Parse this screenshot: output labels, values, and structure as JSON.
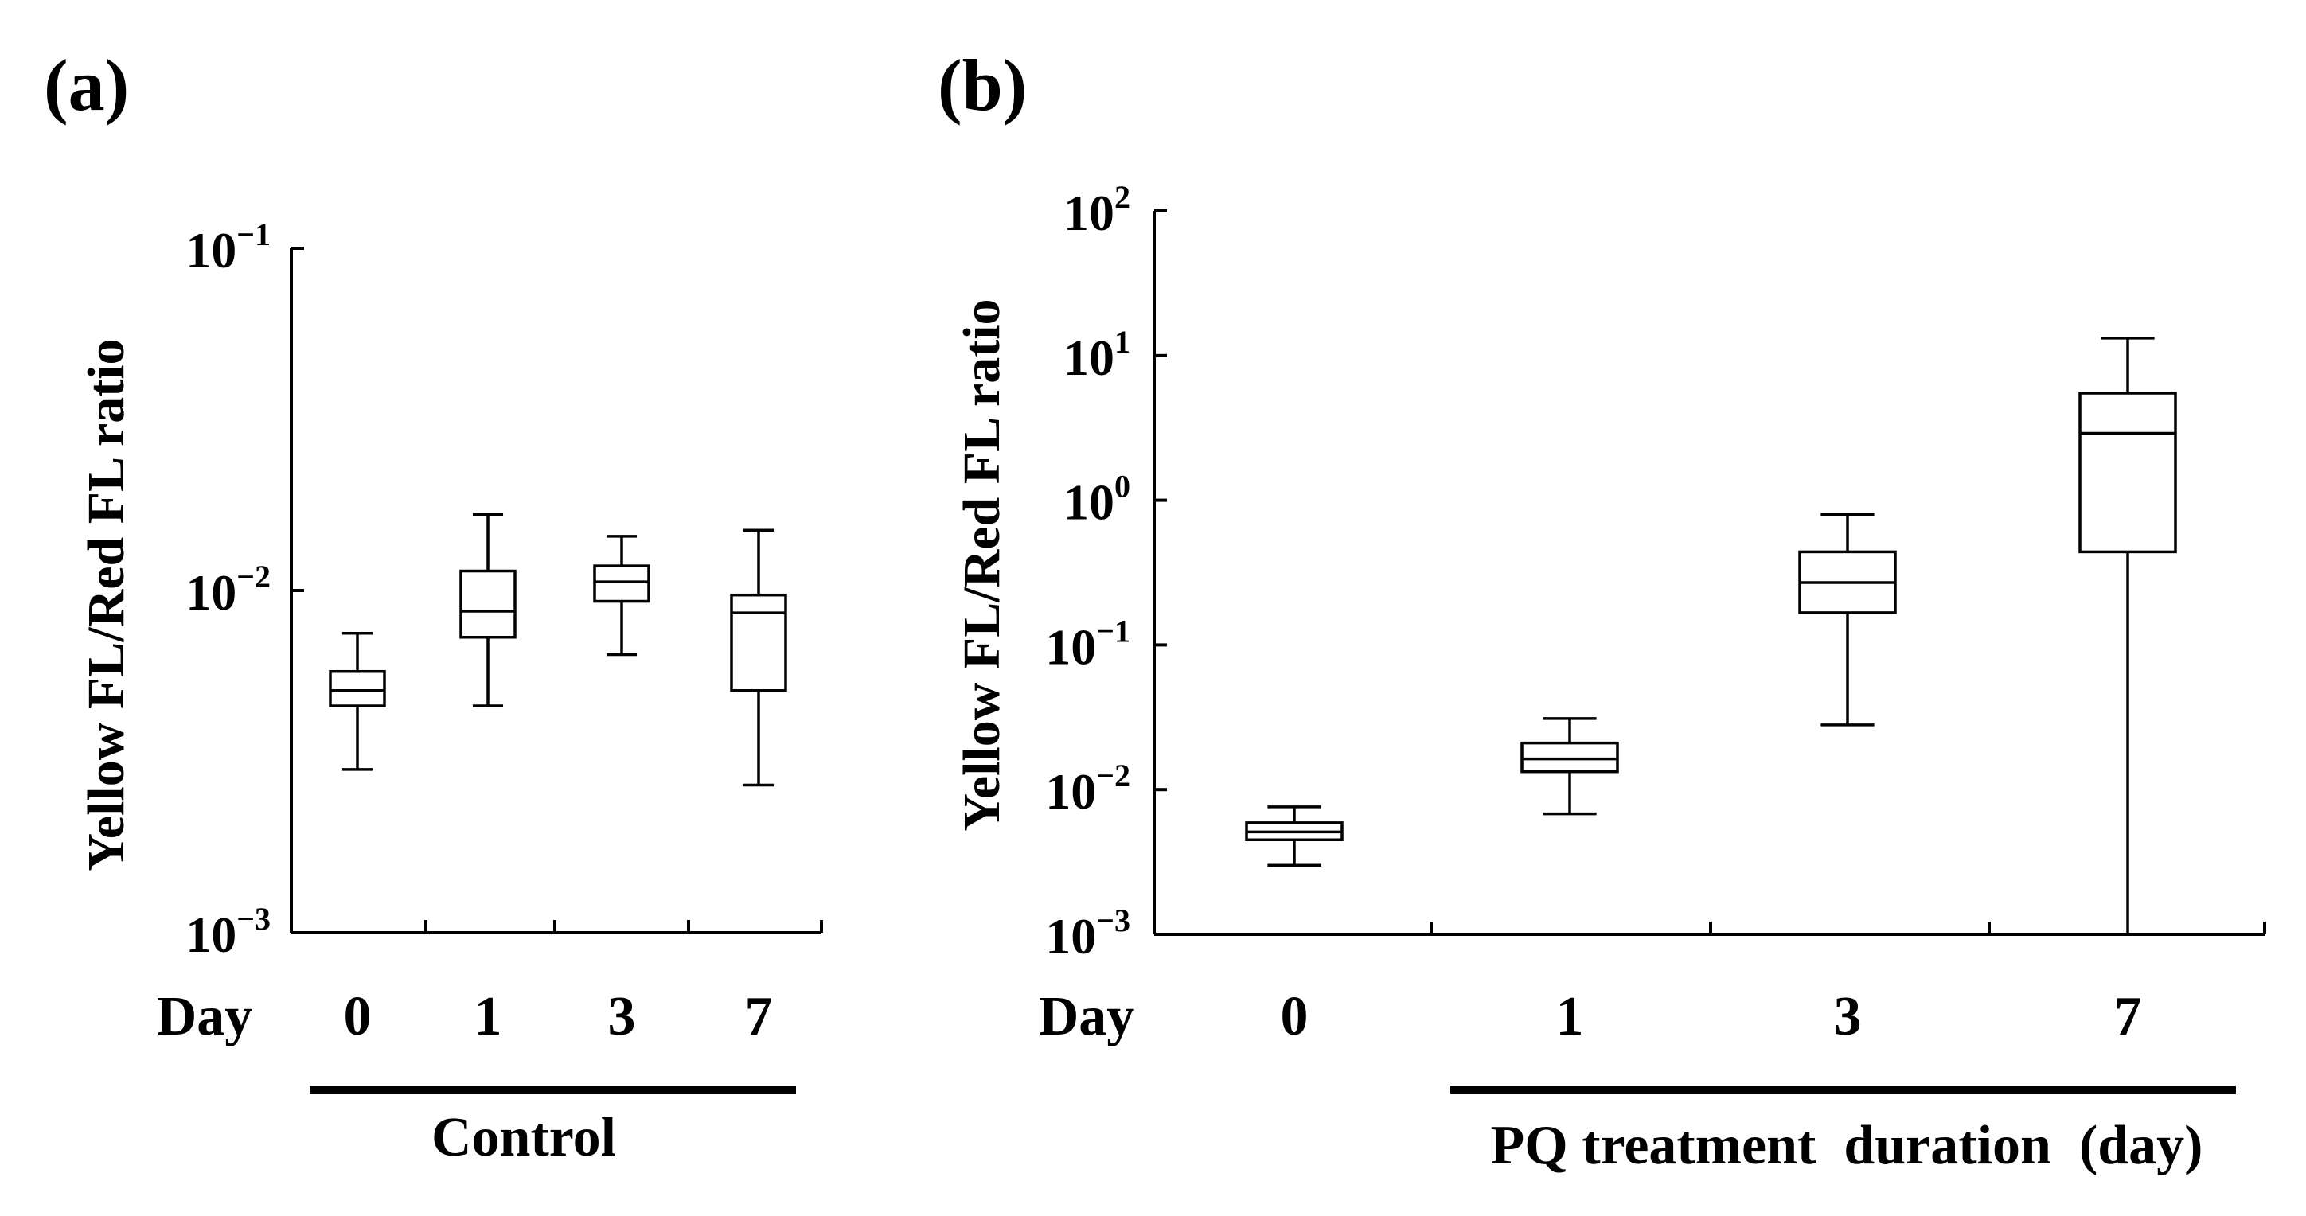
{
  "chart_data": [
    {
      "type": "box",
      "panel_label": "(a)",
      "ylabel": "Yellow FL/Red FL ratio",
      "yscale": "log",
      "ylim": [
        0.001,
        0.1
      ],
      "y_ticks": [
        {
          "base": "10",
          "exp": "−1",
          "value": 0.1
        },
        {
          "base": "10",
          "exp": "−2",
          "value": 0.01
        },
        {
          "base": "10",
          "exp": "−3",
          "value": 0.001
        }
      ],
      "x_prefix": "Day",
      "categories": [
        "0",
        "1",
        "3",
        "7"
      ],
      "group_label": "Control",
      "boxes": [
        {
          "min": 0.003,
          "q1": 0.0046,
          "median": 0.0051,
          "q3": 0.0058,
          "max": 0.0075
        },
        {
          "min": 0.0046,
          "q1": 0.0073,
          "median": 0.0087,
          "q3": 0.0114,
          "max": 0.0167
        },
        {
          "min": 0.0065,
          "q1": 0.0093,
          "median": 0.0106,
          "q3": 0.0118,
          "max": 0.0144
        },
        {
          "min": 0.0027,
          "q1": 0.0051,
          "median": 0.0086,
          "q3": 0.0097,
          "max": 0.015
        }
      ]
    },
    {
      "type": "box",
      "panel_label": "(b)",
      "ylabel": "Yellow FL/Red FL ratio",
      "yscale": "log",
      "ylim": [
        0.001,
        100
      ],
      "y_ticks": [
        {
          "base": "10",
          "exp": "2",
          "value": 100
        },
        {
          "base": "10",
          "exp": "1",
          "value": 10
        },
        {
          "base": "10",
          "exp": "0",
          "value": 1
        },
        {
          "base": "10",
          "exp": "−1",
          "value": 0.1
        },
        {
          "base": "10",
          "exp": "−2",
          "value": 0.01
        },
        {
          "base": "10",
          "exp": "−3",
          "value": 0.001
        }
      ],
      "x_prefix": "Day",
      "categories": [
        "0",
        "1",
        "3",
        "7"
      ],
      "group_label": "PQ treatment  duration  (day)",
      "boxes": [
        {
          "min": 0.003,
          "q1": 0.0045,
          "median": 0.0051,
          "q3": 0.0059,
          "max": 0.0076
        },
        {
          "min": 0.0068,
          "q1": 0.0133,
          "median": 0.0163,
          "q3": 0.021,
          "max": 0.031
        },
        {
          "min": 0.028,
          "q1": 0.167,
          "median": 0.27,
          "q3": 0.44,
          "max": 0.8
        },
        {
          "min": 0.001,
          "q1": 0.44,
          "median": 2.9,
          "q3": 5.5,
          "max": 13.2
        }
      ]
    }
  ]
}
